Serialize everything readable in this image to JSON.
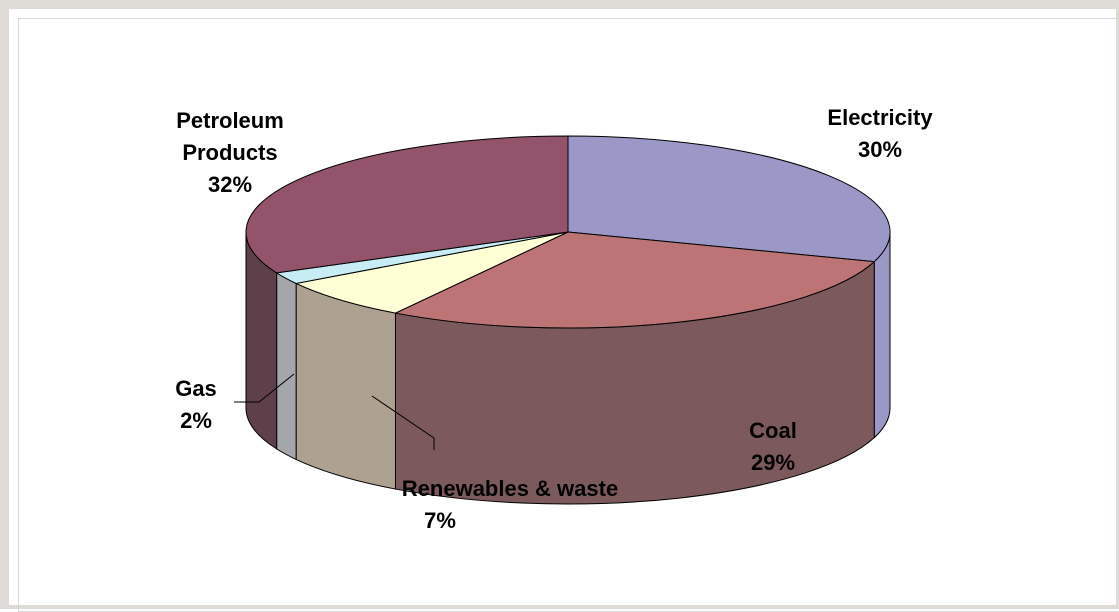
{
  "chart_data": {
    "type": "pie",
    "style": "3d",
    "title": "",
    "slices": [
      {
        "label": "Electricity",
        "value": 30,
        "value_label": "30%",
        "color": "#9b98c8"
      },
      {
        "label": "Coal",
        "value": 29,
        "value_label": "29%",
        "color": "#bc7475"
      },
      {
        "label": "Renewables & waste",
        "value": 7,
        "value_label": "7%",
        "color": "#ffffd6"
      },
      {
        "label": "Gas",
        "value": 2,
        "value_label": "2%",
        "color": "#c8ecf5"
      },
      {
        "label": "Petroleum",
        "label_line2": "Products",
        "value": 32,
        "value_label": "32%",
        "color": "#93536a"
      }
    ],
    "side_colors": {
      "Coal": "#7c5a5b",
      "Renewables & waste": "#aea190",
      "Gas": "#a4a6aa",
      "Petroleum": "#5e404a"
    }
  }
}
